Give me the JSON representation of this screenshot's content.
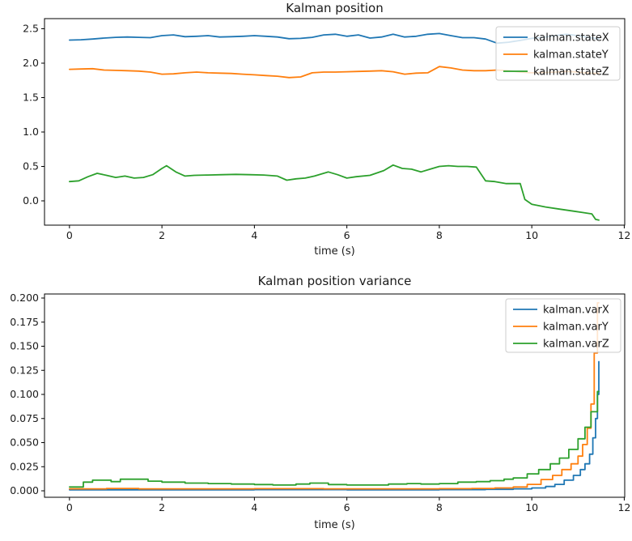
{
  "figure": {
    "background_color": "#ffffff",
    "text_color": "#1a1a1a",
    "spine_color": "#000000",
    "legend_frame_color": "#cccccc",
    "legend_fill_opacity": 0.8
  },
  "chart_data": [
    {
      "type": "line",
      "title": "Kalman position",
      "xlabel": "time (s)",
      "ylabel": "",
      "grid": false,
      "xlim": [
        -0.54,
        12.01
      ],
      "ylim": [
        -0.353,
        2.647
      ],
      "x_tick_values": [
        0,
        2,
        4,
        6,
        8,
        10,
        12
      ],
      "x_tick_labels": [
        "0",
        "2",
        "4",
        "6",
        "8",
        "10",
        "12"
      ],
      "y_tick_values": [
        0.0,
        0.5,
        1.0,
        1.5,
        2.0,
        2.5
      ],
      "y_tick_labels": [
        "0.0",
        "0.5",
        "1.0",
        "1.5",
        "2.0",
        "2.5"
      ],
      "legend": {
        "position": "upper right",
        "entries": [
          {
            "label": "kalman.stateX",
            "color": "#1f77b4"
          },
          {
            "label": "kalman.stateY",
            "color": "#ff7f0e"
          },
          {
            "label": "kalman.stateZ",
            "color": "#2ca02c"
          }
        ]
      },
      "series": [
        {
          "name": "kalman.stateX",
          "color": "#1f77b4",
          "step": false,
          "x": [
            0,
            0.25,
            0.5,
            0.75,
            1.0,
            1.25,
            1.5,
            1.75,
            2.0,
            2.25,
            2.5,
            2.75,
            3.0,
            3.25,
            3.5,
            3.75,
            4.0,
            4.25,
            4.5,
            4.75,
            5.0,
            5.25,
            5.5,
            5.75,
            6.0,
            6.25,
            6.5,
            6.75,
            7.0,
            7.25,
            7.5,
            7.75,
            8.0,
            8.25,
            8.5,
            8.75,
            9.0,
            9.25,
            9.5,
            9.75,
            10.0,
            10.25,
            10.5,
            10.75,
            11.0,
            11.25,
            11.45
          ],
          "y": [
            2.335,
            2.34,
            2.35,
            2.365,
            2.375,
            2.38,
            2.375,
            2.37,
            2.4,
            2.41,
            2.385,
            2.39,
            2.4,
            2.38,
            2.385,
            2.39,
            2.4,
            2.39,
            2.38,
            2.355,
            2.36,
            2.375,
            2.41,
            2.42,
            2.39,
            2.41,
            2.365,
            2.38,
            2.42,
            2.38,
            2.39,
            2.42,
            2.43,
            2.4,
            2.37,
            2.37,
            2.35,
            2.29,
            2.305,
            2.33,
            2.36,
            2.375,
            2.4,
            2.42,
            2.4,
            2.37,
            2.35
          ]
        },
        {
          "name": "kalman.stateY",
          "color": "#ff7f0e",
          "step": false,
          "x": [
            0,
            0.25,
            0.5,
            0.75,
            1.0,
            1.25,
            1.5,
            1.75,
            2.0,
            2.25,
            2.5,
            2.75,
            3.0,
            3.25,
            3.5,
            3.75,
            4.0,
            4.25,
            4.5,
            4.75,
            5.0,
            5.25,
            5.5,
            5.75,
            6.0,
            6.25,
            6.5,
            6.75,
            7.0,
            7.25,
            7.5,
            7.75,
            8.0,
            8.25,
            8.5,
            8.75,
            9.0,
            9.25,
            9.5,
            9.75,
            10.0,
            10.25,
            10.5,
            10.75,
            11.0,
            11.25,
            11.45
          ],
          "y": [
            1.91,
            1.915,
            1.92,
            1.9,
            1.895,
            1.89,
            1.885,
            1.87,
            1.84,
            1.845,
            1.86,
            1.87,
            1.86,
            1.855,
            1.85,
            1.84,
            1.83,
            1.82,
            1.81,
            1.79,
            1.8,
            1.86,
            1.87,
            1.87,
            1.875,
            1.88,
            1.885,
            1.89,
            1.875,
            1.84,
            1.855,
            1.86,
            1.95,
            1.93,
            1.9,
            1.89,
            1.89,
            1.9,
            1.89,
            1.87,
            1.86,
            1.865,
            1.87,
            1.88,
            1.87,
            1.855,
            1.85
          ]
        },
        {
          "name": "kalman.stateZ",
          "color": "#2ca02c",
          "step": false,
          "x": [
            0,
            0.2,
            0.4,
            0.6,
            0.8,
            1.0,
            1.2,
            1.4,
            1.6,
            1.8,
            2.0,
            2.1,
            2.3,
            2.5,
            2.7,
            3.0,
            3.3,
            3.6,
            3.9,
            4.2,
            4.5,
            4.7,
            4.9,
            5.1,
            5.3,
            5.6,
            5.8,
            6.0,
            6.2,
            6.5,
            6.8,
            7.0,
            7.2,
            7.4,
            7.6,
            7.8,
            8.0,
            8.2,
            8.4,
            8.6,
            8.8,
            9.0,
            9.2,
            9.45,
            9.75,
            9.85,
            10.0,
            10.3,
            10.6,
            10.9,
            11.1,
            11.3,
            11.38,
            11.45
          ],
          "y": [
            0.28,
            0.29,
            0.35,
            0.4,
            0.37,
            0.34,
            0.36,
            0.33,
            0.34,
            0.38,
            0.47,
            0.51,
            0.42,
            0.36,
            0.37,
            0.375,
            0.38,
            0.385,
            0.38,
            0.375,
            0.36,
            0.3,
            0.32,
            0.33,
            0.36,
            0.42,
            0.38,
            0.33,
            0.35,
            0.37,
            0.44,
            0.52,
            0.47,
            0.46,
            0.42,
            0.46,
            0.5,
            0.51,
            0.5,
            0.5,
            0.49,
            0.29,
            0.28,
            0.25,
            0.25,
            0.02,
            -0.05,
            -0.09,
            -0.12,
            -0.15,
            -0.17,
            -0.19,
            -0.27,
            -0.28
          ]
        }
      ]
    },
    {
      "type": "line",
      "title": "Kalman position variance",
      "xlabel": "time (s)",
      "ylabel": "",
      "grid": false,
      "xlim": [
        -0.54,
        12.01
      ],
      "ylim": [
        -0.0067,
        0.2042
      ],
      "x_tick_values": [
        0,
        2,
        4,
        6,
        8,
        10,
        12
      ],
      "x_tick_labels": [
        "0",
        "2",
        "4",
        "6",
        "8",
        "10",
        "12"
      ],
      "y_tick_values": [
        0.0,
        0.025,
        0.05,
        0.075,
        0.1,
        0.125,
        0.15,
        0.175,
        0.2
      ],
      "y_tick_labels": [
        "0.000",
        "0.025",
        "0.050",
        "0.075",
        "0.100",
        "0.125",
        "0.150",
        "0.175",
        "0.200"
      ],
      "legend": {
        "position": "upper right",
        "entries": [
          {
            "label": "kalman.varX",
            "color": "#1f77b4"
          },
          {
            "label": "kalman.varY",
            "color": "#ff7f0e"
          },
          {
            "label": "kalman.varZ",
            "color": "#2ca02c"
          }
        ]
      },
      "series": [
        {
          "name": "kalman.varX",
          "color": "#1f77b4",
          "step": true,
          "x": [
            0,
            2.0,
            4.0,
            6.0,
            8.0,
            9.0,
            9.6,
            10.0,
            10.3,
            10.5,
            10.7,
            10.9,
            11.05,
            11.15,
            11.25,
            11.32,
            11.38,
            11.42,
            11.45
          ],
          "y": [
            0.001,
            0.001,
            0.0012,
            0.001,
            0.0012,
            0.0015,
            0.002,
            0.003,
            0.0045,
            0.0067,
            0.011,
            0.016,
            0.022,
            0.028,
            0.038,
            0.055,
            0.075,
            0.1,
            0.134
          ]
        },
        {
          "name": "kalman.varY",
          "color": "#ff7f0e",
          "step": true,
          "x": [
            0,
            0.8,
            1.5,
            2.5,
            4.0,
            5.5,
            7.0,
            8.0,
            8.7,
            9.2,
            9.6,
            9.9,
            10.2,
            10.45,
            10.65,
            10.85,
            11.0,
            11.1,
            11.2,
            11.28,
            11.35,
            11.42,
            11.45
          ],
          "y": [
            0.002,
            0.0025,
            0.002,
            0.002,
            0.0022,
            0.002,
            0.002,
            0.0022,
            0.0025,
            0.003,
            0.004,
            0.0067,
            0.0117,
            0.016,
            0.022,
            0.028,
            0.036,
            0.048,
            0.065,
            0.09,
            0.143,
            0.195,
            0.195
          ]
        },
        {
          "name": "kalman.varZ",
          "color": "#2ca02c",
          "step": true,
          "x": [
            0,
            0.3,
            0.5,
            0.9,
            1.1,
            1.3,
            1.7,
            2.0,
            2.5,
            3.0,
            3.5,
            4.0,
            4.4,
            4.9,
            5.2,
            5.6,
            6.0,
            6.5,
            6.9,
            7.3,
            7.6,
            8.0,
            8.4,
            8.8,
            9.1,
            9.4,
            9.6,
            9.9,
            10.15,
            10.4,
            10.6,
            10.8,
            11.0,
            11.15,
            11.28,
            11.42,
            11.45
          ],
          "y": [
            0.004,
            0.009,
            0.011,
            0.0095,
            0.012,
            0.012,
            0.01,
            0.009,
            0.008,
            0.0075,
            0.007,
            0.0065,
            0.006,
            0.007,
            0.008,
            0.0065,
            0.006,
            0.006,
            0.007,
            0.0075,
            0.007,
            0.0075,
            0.009,
            0.0095,
            0.0105,
            0.012,
            0.0134,
            0.0176,
            0.022,
            0.028,
            0.034,
            0.043,
            0.054,
            0.066,
            0.082,
            0.103,
            0.103
          ]
        }
      ]
    }
  ]
}
